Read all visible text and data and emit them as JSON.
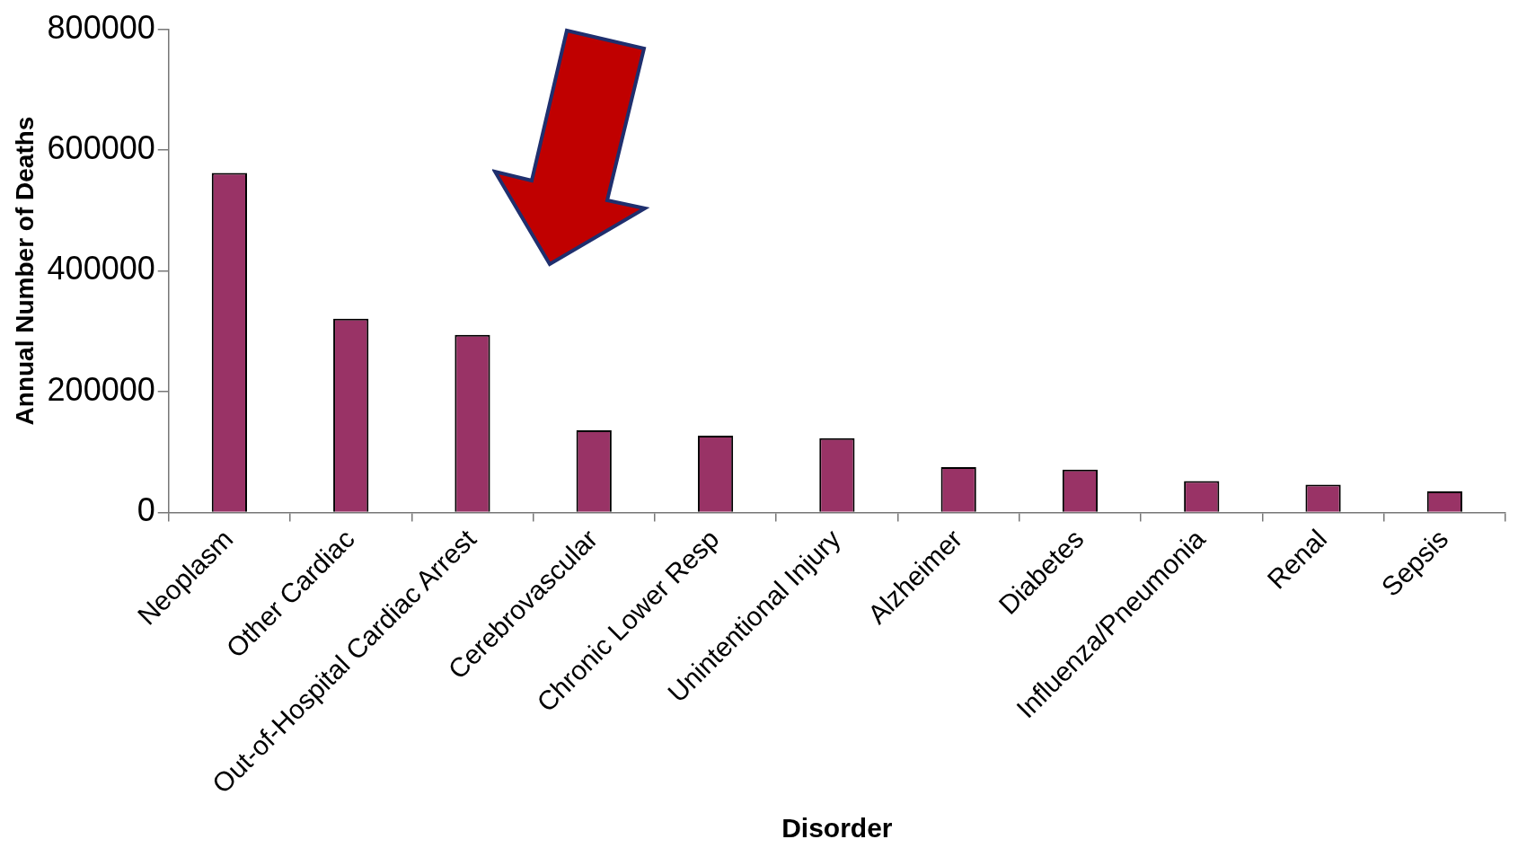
{
  "chart_data": {
    "type": "bar",
    "xlabel": "Disorder",
    "ylabel": "Annual Number of Deaths",
    "categories": [
      "Neoplasm",
      "Other Cardiac",
      "Out-of-Hospital Cardiac Arrest",
      "Cerebrovascular",
      "Chronic Lower Resp",
      "Unintentional Injury",
      "Alzheimer",
      "Diabetes",
      "Influenza/Pneumonia",
      "Renal",
      "Sepsis"
    ],
    "values": [
      562000,
      321000,
      294000,
      136000,
      127000,
      123000,
      75000,
      71000,
      52000,
      46000,
      35000
    ],
    "color": "#993366",
    "ylim": [
      0,
      800000
    ],
    "yticks": [
      0,
      200000,
      400000,
      600000,
      800000
    ],
    "grid": false,
    "legend": false
  }
}
